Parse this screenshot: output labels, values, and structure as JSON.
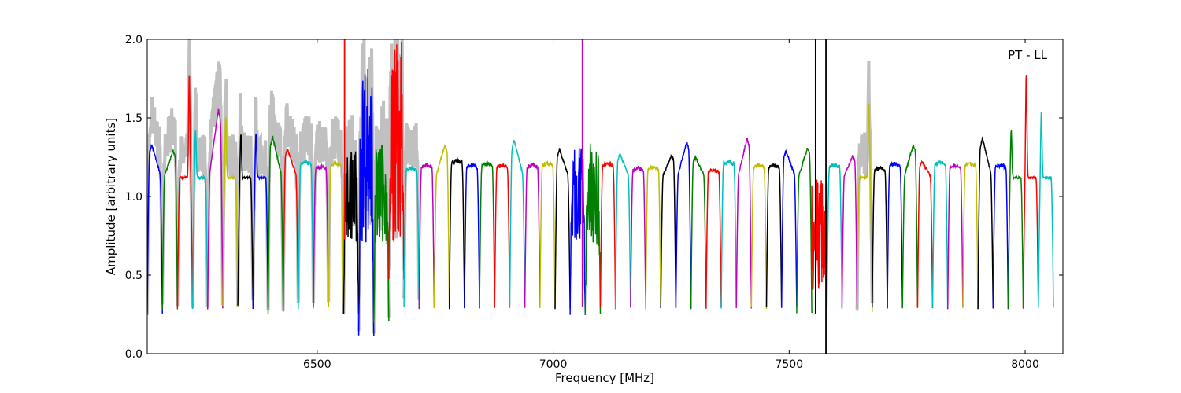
{
  "chart_data": {
    "type": "line",
    "title": "",
    "xlabel": "Frequency [MHz]",
    "ylabel": "Amplitude [arbitrary units]",
    "annotation": "PT - LL",
    "xlim": [
      6140,
      8080
    ],
    "ylim": [
      0.0,
      2.0
    ],
    "xticks": [
      6500,
      7000,
      7500,
      8000
    ],
    "xtick_labels": [
      "6500",
      "7000",
      "7500",
      "8000"
    ],
    "yticks": [
      0.0,
      0.5,
      1.0,
      1.5,
      2.0
    ],
    "ytick_labels": [
      "0.0",
      "0.5",
      "1.0",
      "1.5",
      "2.0"
    ],
    "grid": false,
    "legend": "none",
    "band_width_mhz": 32,
    "color_cycle": [
      "#0000ff",
      "#008000",
      "#ff0000",
      "#00bfbf",
      "#bf00bf",
      "#bfbf00",
      "#000000"
    ],
    "background_series_color": "#c0c0c0",
    "series": [
      {
        "start": 6140,
        "peak": 1.33,
        "edge": 0.25,
        "shape": "hump-left"
      },
      {
        "start": 6172,
        "peak": 1.29,
        "edge": 0.28,
        "shape": "hump-right"
      },
      {
        "start": 6204,
        "peak": 1.78,
        "edge": 0.3,
        "shape": "spike-right"
      },
      {
        "start": 6236,
        "peak": 1.42,
        "edge": 0.28,
        "shape": "spike-left"
      },
      {
        "start": 6268,
        "peak": 1.56,
        "edge": 0.29,
        "shape": "hump-right"
      },
      {
        "start": 6300,
        "peak": 1.52,
        "edge": 0.3,
        "shape": "spike-left"
      },
      {
        "start": 6332,
        "peak": 1.4,
        "edge": 0.3,
        "shape": "spike-left"
      },
      {
        "start": 6364,
        "peak": 1.4,
        "edge": 0.29,
        "shape": "spike-left"
      },
      {
        "start": 6396,
        "peak": 1.38,
        "edge": 0.26,
        "shape": "hump-left"
      },
      {
        "start": 6428,
        "peak": 1.3,
        "edge": 0.3,
        "shape": "hump-left"
      },
      {
        "start": 6460,
        "peak": 1.22,
        "edge": 0.29,
        "shape": "flat"
      },
      {
        "start": 6492,
        "peak": 1.19,
        "edge": 0.3,
        "shape": "flat"
      },
      {
        "start": 6524,
        "peak": 1.21,
        "edge": 0.3,
        "shape": "flat"
      },
      {
        "start": 6556,
        "peak": 1.33,
        "edge": 0.25,
        "shape": "noisy"
      },
      {
        "start": 6588,
        "peak": 1.88,
        "edge": 0.12,
        "shape": "noisy"
      },
      {
        "start": 6620,
        "peak": 1.34,
        "edge": 0.2,
        "shape": "noisy"
      },
      {
        "start": 6652,
        "peak": 2.0,
        "edge": 0.48,
        "shape": "noisy"
      },
      {
        "start": 6684,
        "peak": 1.18,
        "edge": 0.3,
        "shape": "flat"
      },
      {
        "start": 6716,
        "peak": 1.2,
        "edge": 0.29,
        "shape": "flat"
      },
      {
        "start": 6748,
        "peak": 1.33,
        "edge": 0.29,
        "shape": "hump-right"
      },
      {
        "start": 6780,
        "peak": 1.23,
        "edge": 0.29,
        "shape": "flat"
      },
      {
        "start": 6812,
        "peak": 1.2,
        "edge": 0.29,
        "shape": "flat"
      },
      {
        "start": 6844,
        "peak": 1.21,
        "edge": 0.29,
        "shape": "flat"
      },
      {
        "start": 6876,
        "peak": 1.2,
        "edge": 0.3,
        "shape": "flat"
      },
      {
        "start": 6908,
        "peak": 1.36,
        "edge": 0.29,
        "shape": "hump-left"
      },
      {
        "start": 6940,
        "peak": 1.2,
        "edge": 0.29,
        "shape": "flat"
      },
      {
        "start": 6972,
        "peak": 1.21,
        "edge": 0.29,
        "shape": "flat"
      },
      {
        "start": 7004,
        "peak": 1.3,
        "edge": 0.29,
        "shape": "hump-left"
      },
      {
        "start": 7036,
        "peak": 1.31,
        "edge": 0.25,
        "shape": "noisy"
      },
      {
        "start": 7068,
        "peak": 1.33,
        "edge": 0.25,
        "shape": "noisy"
      },
      {
        "start": 7100,
        "peak": 1.21,
        "edge": 0.29,
        "shape": "flat"
      },
      {
        "start": 7132,
        "peak": 1.27,
        "edge": 0.29,
        "shape": "hump-left"
      },
      {
        "start": 7164,
        "peak": 1.18,
        "edge": 0.29,
        "shape": "flat"
      },
      {
        "start": 7196,
        "peak": 1.19,
        "edge": 0.29,
        "shape": "flat"
      },
      {
        "start": 7228,
        "peak": 1.26,
        "edge": 0.29,
        "shape": "hump-right"
      },
      {
        "start": 7260,
        "peak": 1.35,
        "edge": 0.29,
        "shape": "hump-right"
      },
      {
        "start": 7292,
        "peak": 1.25,
        "edge": 0.29,
        "shape": "hump-left"
      },
      {
        "start": 7324,
        "peak": 1.17,
        "edge": 0.29,
        "shape": "flat"
      },
      {
        "start": 7356,
        "peak": 1.22,
        "edge": 0.29,
        "shape": "flat"
      },
      {
        "start": 7388,
        "peak": 1.37,
        "edge": 0.29,
        "shape": "hump-right"
      },
      {
        "start": 7420,
        "peak": 1.2,
        "edge": 0.29,
        "shape": "flat"
      },
      {
        "start": 7452,
        "peak": 1.2,
        "edge": 0.29,
        "shape": "flat"
      },
      {
        "start": 7484,
        "peak": 1.29,
        "edge": 0.29,
        "shape": "hump-left"
      },
      {
        "start": 7516,
        "peak": 1.31,
        "edge": 0.26,
        "shape": "hump-right"
      },
      {
        "start": 7548,
        "peak": 1.14,
        "edge": 0.0,
        "shape": "rfi"
      },
      {
        "start": 7580,
        "peak": 1.2,
        "edge": 0.29,
        "shape": "flat"
      },
      {
        "start": 7612,
        "peak": 1.26,
        "edge": 0.29,
        "shape": "hump-right"
      },
      {
        "start": 7644,
        "peak": 1.61,
        "edge": 0.27,
        "shape": "spike-right"
      },
      {
        "start": 7676,
        "peak": 1.18,
        "edge": 0.29,
        "shape": "flat"
      },
      {
        "start": 7708,
        "peak": 1.21,
        "edge": 0.29,
        "shape": "flat"
      },
      {
        "start": 7740,
        "peak": 1.33,
        "edge": 0.29,
        "shape": "hump-right"
      },
      {
        "start": 7772,
        "peak": 1.22,
        "edge": 0.29,
        "shape": "hump-left"
      },
      {
        "start": 7804,
        "peak": 1.22,
        "edge": 0.29,
        "shape": "flat"
      },
      {
        "start": 7836,
        "peak": 1.2,
        "edge": 0.29,
        "shape": "flat"
      },
      {
        "start": 7868,
        "peak": 1.21,
        "edge": 0.29,
        "shape": "flat"
      },
      {
        "start": 7900,
        "peak": 1.37,
        "edge": 0.29,
        "shape": "hump-left"
      },
      {
        "start": 7932,
        "peak": 1.2,
        "edge": 0.29,
        "shape": "flat"
      },
      {
        "start": 7964,
        "peak": 1.42,
        "edge": 0.29,
        "shape": "spike-left"
      },
      {
        "start": 7996,
        "peak": 1.78,
        "edge": 0.3,
        "shape": "spike-left"
      },
      {
        "start": 8028,
        "peak": 1.55,
        "edge": 0.3,
        "shape": "spike-left"
      }
    ],
    "spikes": [
      {
        "x": 6558,
        "y0": 0.73,
        "y1": 2.0,
        "color": "#ff0000"
      },
      {
        "x": 7062,
        "y0": 0.3,
        "y1": 2.0,
        "color": "#bf00bf"
      },
      {
        "x": 7556,
        "y0": 0.25,
        "y1": 2.0,
        "color": "#000000"
      },
      {
        "x": 7578,
        "y0": 0.0,
        "y1": 2.0,
        "color": "#000000"
      }
    ]
  }
}
